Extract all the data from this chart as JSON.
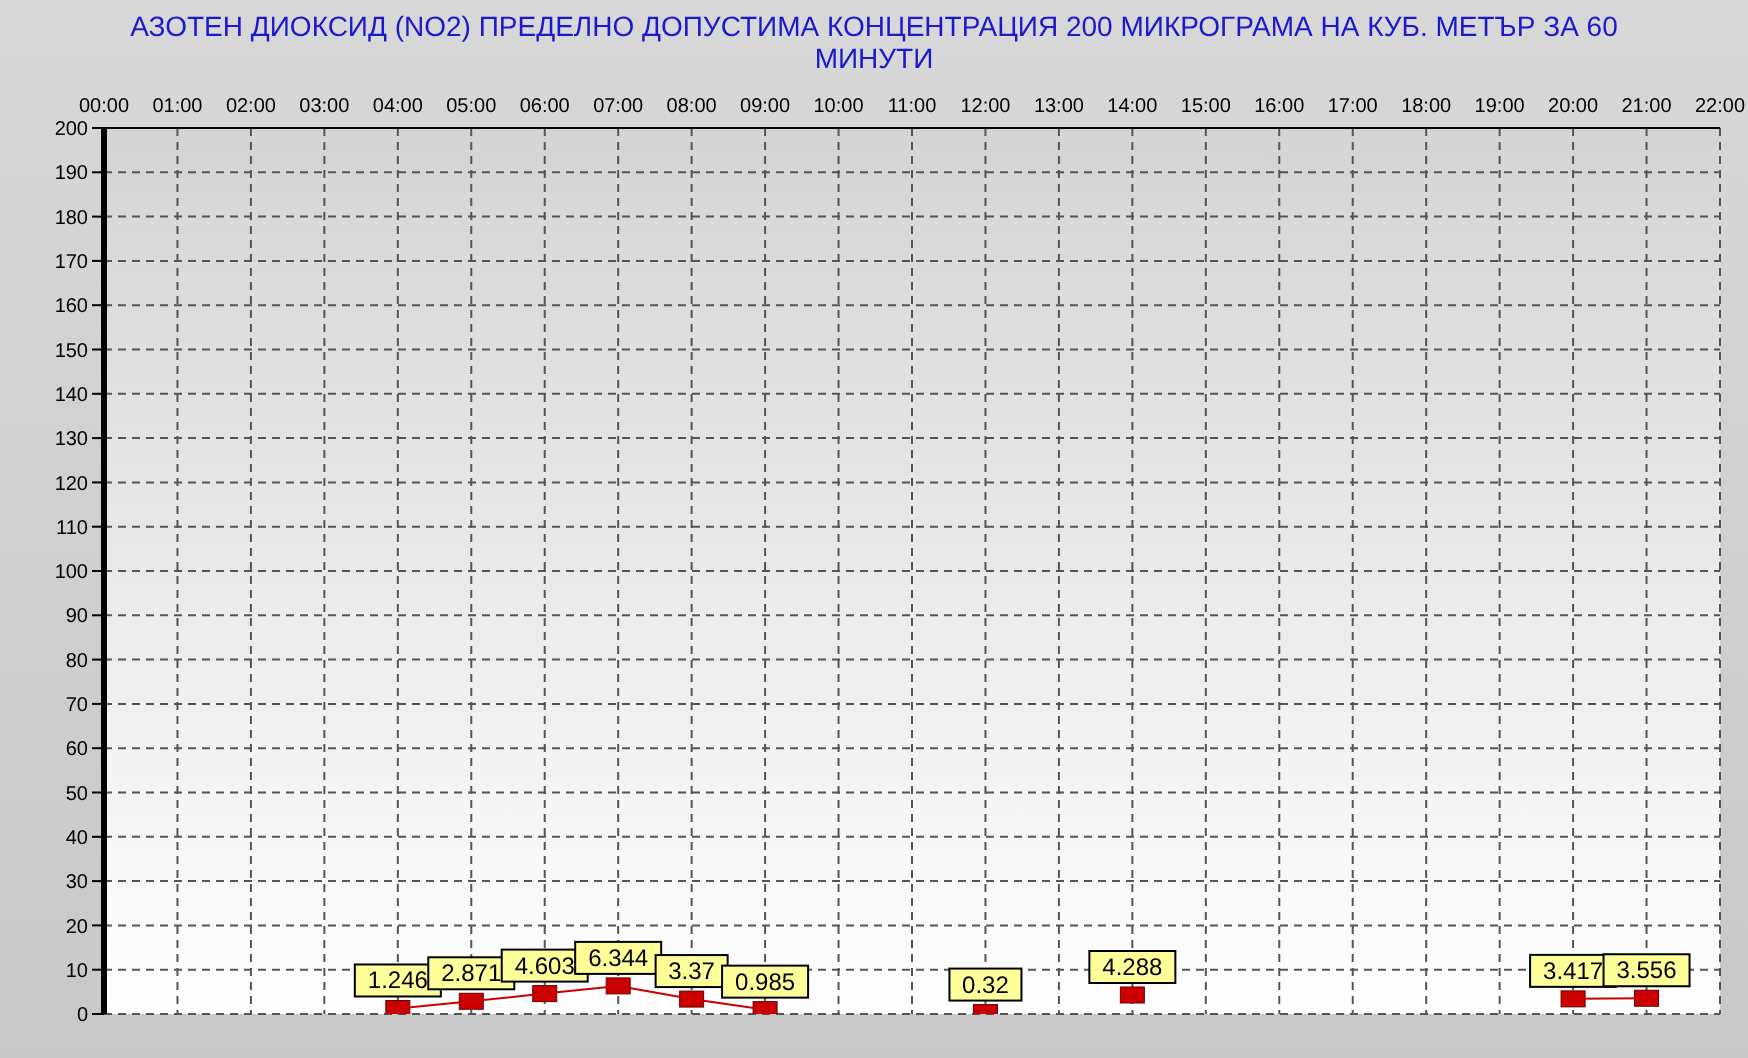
{
  "chart_data": {
    "type": "line",
    "title": "АЗОТЕН ДИОКСИД   (NO2)     ПРЕДЕЛНО ДОПУСТИМА КОНЦЕНТРАЦИЯ 200 МИКРОГРАМА  НА КУБ. МЕТЪР ЗА 60 МИНУТИ",
    "series": [
      {
        "color": "#cc0000",
        "x": [
          4,
          5,
          6,
          7,
          8,
          9
        ],
        "values": [
          1.246,
          2.871,
          4.603,
          6.344,
          3.37,
          0.985
        ]
      },
      {
        "color": "#cc0000",
        "x": [
          12
        ],
        "values": [
          0.32
        ]
      },
      {
        "color": "#cc0000",
        "x": [
          14
        ],
        "values": [
          4.288
        ]
      },
      {
        "color": "#cc0000",
        "x": [
          20,
          21
        ],
        "values": [
          3.417,
          3.556
        ]
      }
    ],
    "xlim": [
      0,
      22
    ],
    "xticks": [
      {
        "value": 0,
        "label": "00:00"
      },
      {
        "value": 1,
        "label": "01:00"
      },
      {
        "value": 2,
        "label": "02:00"
      },
      {
        "value": 3,
        "label": "03:00"
      },
      {
        "value": 4,
        "label": "04:00"
      },
      {
        "value": 5,
        "label": "05:00"
      },
      {
        "value": 6,
        "label": "06:00"
      },
      {
        "value": 7,
        "label": "07:00"
      },
      {
        "value": 8,
        "label": "08:00"
      },
      {
        "value": 9,
        "label": "09:00"
      },
      {
        "value": 10,
        "label": "10:00"
      },
      {
        "value": 11,
        "label": "11:00"
      },
      {
        "value": 12,
        "label": "12:00"
      },
      {
        "value": 13,
        "label": "13:00"
      },
      {
        "value": 14,
        "label": "14:00"
      },
      {
        "value": 15,
        "label": "15:00"
      },
      {
        "value": 16,
        "label": "16:00"
      },
      {
        "value": 17,
        "label": "17:00"
      },
      {
        "value": 18,
        "label": "18:00"
      },
      {
        "value": 19,
        "label": "19:00"
      },
      {
        "value": 20,
        "label": "20:00"
      },
      {
        "value": 21,
        "label": "21:00"
      },
      {
        "value": 22,
        "label": "22:00"
      }
    ],
    "ylim": [
      0,
      200
    ],
    "yticks": [
      0,
      10,
      20,
      30,
      40,
      50,
      60,
      70,
      80,
      90,
      100,
      110,
      120,
      130,
      140,
      150,
      160,
      170,
      180,
      190,
      200
    ],
    "marker": "square",
    "line_style": "solid",
    "grid": true,
    "data_labels": true
  }
}
